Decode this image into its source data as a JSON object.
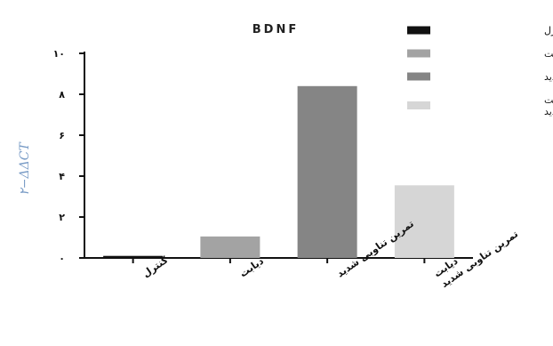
{
  "chart_data": {
    "type": "bar",
    "title": "BDNF",
    "ylabel": "۲−ΔΔCT",
    "xlabel": "",
    "ylim": [
      0,
      10
    ],
    "yticks": [
      0,
      2,
      4,
      6,
      8,
      10
    ],
    "ytick_labels": [
      "۰",
      "۲",
      "۴",
      "۶",
      "۸",
      "۱۰"
    ],
    "categories": [
      [
        "کنترل"
      ],
      [
        "دیابت"
      ],
      [
        "تمرین تناوبی شدید"
      ],
      [
        "دیابت",
        "تمرین تناوبی شدید"
      ]
    ],
    "values": [
      0.1,
      1.05,
      8.4,
      3.55
    ],
    "colors": [
      "#111111",
      "#a3a3a3",
      "#858585",
      "#d6d6d6"
    ],
    "legend": {
      "placement": "top-right",
      "entries": [
        [
          "کنترل"
        ],
        [
          "دیابت"
        ],
        [
          "تمرین تناوبی شدید"
        ],
        [
          "دیابت",
          "تمرین تناوبی شدید"
        ]
      ]
    },
    "grid": false
  }
}
